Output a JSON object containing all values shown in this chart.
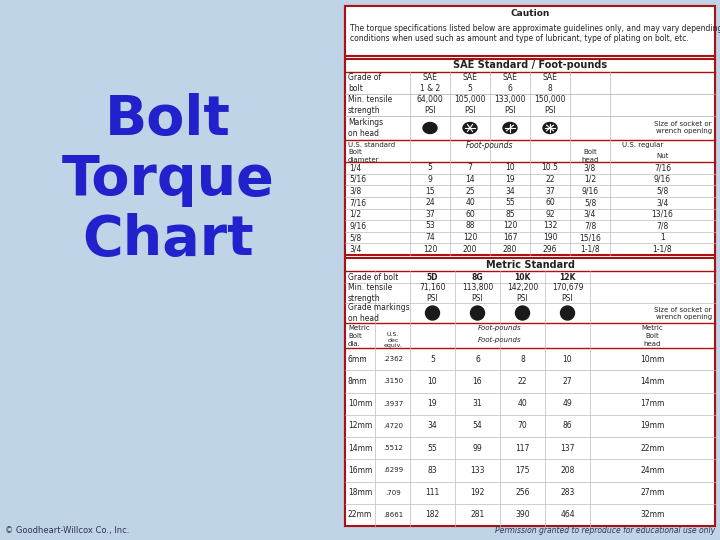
{
  "title": "Bolt\nTorque\nChart",
  "title_color": "#2222CC",
  "bg_color": "#C0D4E8",
  "border_color": "#AA1111",
  "text_color": "#333333",
  "copyright": "© Goodheart-Willcox Co., Inc.",
  "permission": "Permission granted to reproduce for educational use only",
  "caution_title": "Caution",
  "caution_text": "The torque specifications listed below are approximate guidelines only, and may vary depending on\nconditions when used such as amount and type of lubricant, type of plating on bolt, etc.",
  "sae_header": "SAE Standard / Foot-pounds",
  "metric_header": "Metric Standard",
  "sae_grades": [
    "SAE\n1 & 2",
    "SAE\n5",
    "SAE\n6",
    "SAE\n8"
  ],
  "sae_tensile": [
    "64,000\nPSI",
    "105,000\nPSI",
    "133,000\nPSI",
    "150,000\nPSI"
  ],
  "sae_data": [
    [
      "1/4",
      "5",
      "7",
      "10",
      "10.5",
      "3/8",
      "7/16"
    ],
    [
      "5/16",
      "9",
      "14",
      "19",
      "22",
      "1/2",
      "9/16"
    ],
    [
      "3/8",
      "15",
      "25",
      "34",
      "37",
      "9/16",
      "5/8"
    ],
    [
      "7/16",
      "24",
      "40",
      "55",
      "60",
      "5/8",
      "3/4"
    ],
    [
      "1/2",
      "37",
      "60",
      "85",
      "92",
      "3/4",
      "13/16"
    ],
    [
      "9/16",
      "53",
      "88",
      "120",
      "132",
      "7/8",
      "7/8"
    ],
    [
      "5/8",
      "74",
      "120",
      "167",
      "190",
      "15/16",
      "1"
    ],
    [
      "3/4",
      "120",
      "200",
      "280",
      "296",
      "1-1/8",
      "1-1/8"
    ]
  ],
  "metric_grades": [
    "5D",
    "8G",
    "10K",
    "12K"
  ],
  "metric_tensile": [
    "71,160\nPSI",
    "113,800\nPSI",
    "142,200\nPSI",
    "170,679\nPSI"
  ],
  "metric_data": [
    [
      "6mm",
      ".2362",
      "5",
      "6",
      "8",
      "10",
      "10mm"
    ],
    [
      "8mm",
      ".3150",
      "10",
      "16",
      "22",
      "27",
      "14mm"
    ],
    [
      "10mm",
      ".3937",
      "19",
      "31",
      "40",
      "49",
      "17mm"
    ],
    [
      "12mm",
      ".4720",
      "34",
      "54",
      "70",
      "86",
      "19mm"
    ],
    [
      "14mm",
      ".5512",
      "55",
      "99",
      "117",
      "137",
      "22mm"
    ],
    [
      "16mm",
      ".6299",
      "83",
      "133",
      "175",
      "208",
      "24mm"
    ],
    [
      "18mm",
      ".709",
      "111",
      "192",
      "256",
      "283",
      "27mm"
    ],
    [
      "22mm",
      ".8661",
      "182",
      "281",
      "390",
      "464",
      "32mm"
    ]
  ]
}
